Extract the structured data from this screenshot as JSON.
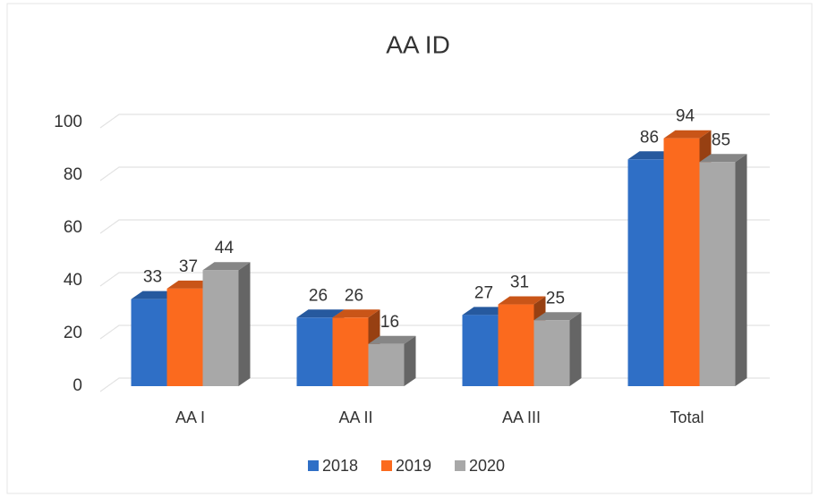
{
  "chart_data": {
    "type": "bar3d",
    "title": "AA ID",
    "categories": [
      "AA I",
      "AA II",
      "AA III",
      "Total"
    ],
    "series": [
      {
        "name": "2018",
        "color": "#2f6fc6",
        "values": [
          33,
          26,
          27,
          86
        ]
      },
      {
        "name": "2019",
        "color": "#fb6a1e",
        "values": [
          37,
          26,
          31,
          94
        ]
      },
      {
        "name": "2020",
        "color": "#a8a8a8",
        "values": [
          44,
          16,
          25,
          85
        ]
      }
    ],
    "ylim": [
      0,
      100
    ],
    "yticks": [
      0,
      20,
      40,
      60,
      80,
      100
    ],
    "grid": true,
    "legend": "bottom"
  }
}
